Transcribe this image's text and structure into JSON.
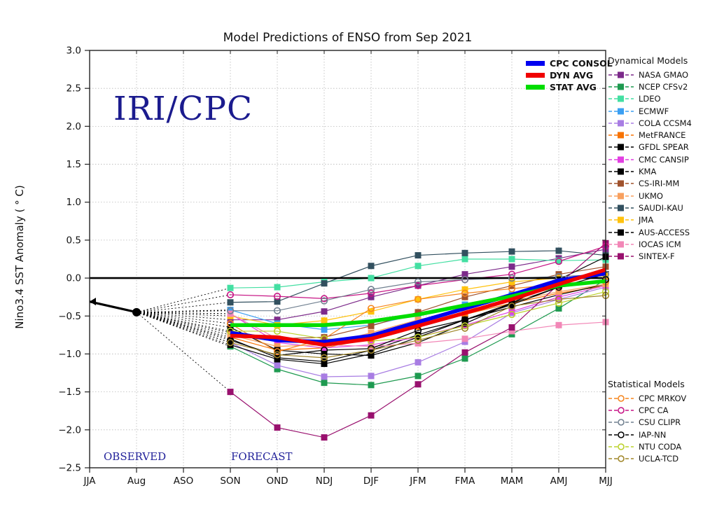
{
  "chart_data": {
    "type": "line",
    "title": "Model Predictions of ENSO from Sep 2021",
    "watermark": "IRI/CPC",
    "ylabel": "Nino3.4 SST Anomaly ( ° C)",
    "xlabel": "",
    "region_labels": {
      "observed": "OBSERVED",
      "forecast": "FORECAST"
    },
    "x_categories": [
      "JJA",
      "Aug",
      "ASO",
      "SON",
      "OND",
      "NDJ",
      "DJF",
      "JFM",
      "FMA",
      "MAM",
      "AMJ",
      "MJJ"
    ],
    "forecast_start_index": 3,
    "ylim": [
      -2.5,
      3.0
    ],
    "y_ticks": [
      3.0,
      2.5,
      2.0,
      1.5,
      1.0,
      0.5,
      0.0,
      -0.5,
      -1.0,
      -1.5,
      -2.0,
      -2.5
    ],
    "grid": "dotted",
    "zero_line": 0.0,
    "observed": {
      "name": "OBSERVED",
      "color": "#000000",
      "x": [
        "JJA",
        "Aug"
      ],
      "values": [
        -0.31,
        -0.45
      ]
    },
    "averages": {
      "items": [
        {
          "name": "CPC CONSOL",
          "color": "#0000f0",
          "values": [
            -0.72,
            -0.82,
            -0.84,
            -0.76,
            -0.58,
            -0.4,
            -0.22,
            -0.03,
            0.06
          ]
        },
        {
          "name": "DYN AVG",
          "color": "#f00000",
          "values": [
            -0.76,
            -0.78,
            -0.88,
            -0.8,
            -0.63,
            -0.46,
            -0.28,
            -0.08,
            0.11
          ]
        },
        {
          "name": "STAT AVG",
          "color": "#00dd00",
          "values": [
            -0.62,
            -0.62,
            -0.62,
            -0.57,
            -0.48,
            -0.36,
            -0.24,
            -0.1,
            -0.04
          ]
        }
      ]
    },
    "dynamical_models": {
      "title": "Dynamical Models",
      "marker": "filled-square",
      "series": [
        {
          "name": "NASA GMAO",
          "color": "#7c2a8a",
          "values": [
            -0.55,
            -0.55,
            -0.44,
            -0.25,
            -0.1,
            0.05,
            0.15,
            0.26,
            0.38
          ]
        },
        {
          "name": "NCEP CFSv2",
          "color": "#1e9a50",
          "values": [
            -0.9,
            -1.2,
            -1.38,
            -1.41,
            -1.29,
            -1.06,
            -0.74,
            -0.4,
            -0.02
          ]
        },
        {
          "name": "LDEO",
          "color": "#43dfa2",
          "values": [
            -0.13,
            -0.12,
            -0.05,
            0.0,
            0.16,
            0.25,
            0.25,
            0.23,
            0.24
          ]
        },
        {
          "name": "ECMWF",
          "color": "#3b9ff2",
          "values": [
            -0.42,
            -0.6,
            -0.68,
            -0.62,
            -0.48,
            -0.35,
            -0.22,
            -0.12,
            -0.05
          ]
        },
        {
          "name": "COLA CCSM4",
          "color": "#a87de3",
          "values": [
            -0.85,
            -1.15,
            -1.3,
            -1.29,
            -1.11,
            -0.84,
            -0.46,
            -0.28,
            -0.12
          ]
        },
        {
          "name": "MetFRANCE",
          "color": "#f87303",
          "values": [
            -0.78,
            -0.95,
            -0.92,
            -0.8,
            -0.64,
            -0.48,
            -0.33,
            -0.2,
            -0.1
          ]
        },
        {
          "name": "GFDL SPEAR",
          "color": "#000000",
          "values": [
            -0.8,
            -1.05,
            -1.1,
            -0.95,
            -0.75,
            -0.55,
            -0.38,
            -0.22,
            -0.08
          ]
        },
        {
          "name": "CMC CANSIP",
          "color": "#e23fe2",
          "values": [
            -0.47,
            -0.85,
            -0.92,
            -0.88,
            -0.78,
            -0.62,
            -0.44,
            -0.25,
            -0.1
          ]
        },
        {
          "name": "KMA",
          "color": "#000000",
          "values": [
            -0.88,
            -1.07,
            -1.13,
            -1.0,
            -0.78,
            -0.55,
            -0.33,
            -0.12,
            0.05
          ]
        },
        {
          "name": "CS-IRI-MM",
          "color": "#a0522d",
          "values": [
            -0.72,
            -0.8,
            -0.78,
            -0.63,
            -0.45,
            -0.25,
            -0.1,
            0.05,
            0.15
          ]
        },
        {
          "name": "UKMO",
          "color": "#f8a05f",
          "values": [
            -0.75,
            -0.9,
            -0.88,
            -0.72,
            -0.55,
            -0.42,
            -0.3,
            -0.18,
            -0.08
          ]
        },
        {
          "name": "SAUDI-KAU",
          "color": "#32505f",
          "values": [
            -0.32,
            -0.31,
            -0.07,
            0.16,
            0.3,
            0.33,
            0.35,
            0.36,
            0.3
          ]
        },
        {
          "name": "JMA",
          "color": "#ffc20e",
          "values": [
            -0.5,
            -0.62,
            -0.56,
            -0.44,
            -0.28,
            -0.15,
            -0.05,
            0.0,
            0.03
          ]
        },
        {
          "name": "AUS-ACCESS",
          "color": "#000000",
          "values": [
            -0.65,
            -0.95,
            -1.0,
            -1.02,
            -0.85,
            -0.6,
            -0.33,
            -0.02,
            0.28
          ]
        },
        {
          "name": "IOCAS ICM",
          "color": "#f287b7",
          "values": [
            -0.47,
            -0.8,
            -0.88,
            -0.9,
            -0.86,
            -0.8,
            -0.7,
            -0.62,
            -0.58
          ]
        },
        {
          "name": "SINTEX-F",
          "color": "#99106e",
          "values": [
            -1.5,
            -1.97,
            -2.1,
            -1.81,
            -1.4,
            -0.98,
            -0.65,
            -0.08,
            0.46
          ]
        }
      ]
    },
    "statistical_models": {
      "title": "Statistical Models",
      "marker": "open-circle",
      "series": [
        {
          "name": "CPC MRKOV",
          "color": "#f5861f",
          "values": [
            -0.6,
            -0.97,
            -0.8,
            -0.4,
            -0.28,
            -0.2,
            -0.14,
            -0.08,
            -0.05
          ]
        },
        {
          "name": "CPC CA",
          "color": "#c71585",
          "values": [
            -0.22,
            -0.24,
            -0.27,
            -0.2,
            -0.1,
            -0.02,
            0.05,
            0.22,
            0.42
          ]
        },
        {
          "name": "CSU CLIPR",
          "color": "#708090",
          "values": [
            -0.43,
            -0.43,
            -0.3,
            -0.15,
            -0.05,
            -0.02,
            0.0,
            0.02,
            0.05
          ]
        },
        {
          "name": "IAP-NN",
          "color": "#000000",
          "values": [
            -0.82,
            -1.02,
            -0.95,
            -0.93,
            -0.69,
            -0.55,
            -0.35,
            -0.12,
            -0.02
          ]
        },
        {
          "name": "NTU CODA",
          "color": "#bcd22b",
          "values": [
            -0.7,
            -0.7,
            -0.8,
            -0.83,
            -0.78,
            -0.63,
            -0.48,
            -0.33,
            -0.18
          ]
        },
        {
          "name": "UCLA-TCD",
          "color": "#a08629",
          "values": [
            -0.85,
            -1.01,
            -1.05,
            -0.95,
            -0.82,
            -0.66,
            -0.37,
            -0.28,
            -0.23
          ]
        }
      ]
    }
  }
}
